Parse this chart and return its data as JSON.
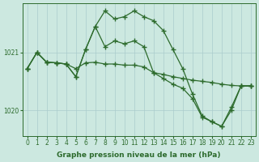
{
  "bg_color": "#cce8e0",
  "grid_color": "#aacccc",
  "line_color": "#2d6b2d",
  "xlabel": "Graphe pression niveau de la mer (hPa)",
  "yticks": [
    1020,
    1021
  ],
  "xticks": [
    0,
    1,
    2,
    3,
    4,
    5,
    6,
    7,
    8,
    9,
    10,
    11,
    12,
    13,
    14,
    15,
    16,
    17,
    18,
    19,
    20,
    21,
    22,
    23
  ],
  "ylim": [
    1019.55,
    1021.85
  ],
  "xlim": [
    -0.5,
    23.5
  ],
  "line1_x": [
    0,
    1,
    2,
    3,
    4,
    5,
    6,
    7,
    8,
    9,
    10,
    11,
    12,
    13,
    14,
    15,
    16,
    17,
    18,
    19,
    20,
    21,
    22,
    23
  ],
  "line1_y": [
    1020.72,
    1021.0,
    1020.83,
    1020.82,
    1020.8,
    1020.72,
    1020.82,
    1020.83,
    1020.8,
    1020.8,
    1020.78,
    1020.78,
    1020.75,
    1020.65,
    1020.62,
    1020.58,
    1020.55,
    1020.52,
    1020.5,
    1020.48,
    1020.45,
    1020.43,
    1020.42,
    1020.42
  ],
  "line2_x": [
    0,
    1,
    2,
    3,
    4,
    5,
    6,
    7,
    8,
    9,
    10,
    11,
    12,
    13,
    14,
    15,
    16,
    17,
    18,
    19,
    20,
    21,
    22,
    23
  ],
  "line2_y": [
    1020.72,
    1021.0,
    1020.83,
    1020.82,
    1020.8,
    1020.58,
    1021.05,
    1021.45,
    1021.1,
    1021.2,
    1021.15,
    1021.2,
    1021.1,
    1020.65,
    1020.55,
    1020.45,
    1020.38,
    1020.2,
    1019.88,
    1019.8,
    1019.72,
    1020.0,
    1020.42,
    1020.42
  ],
  "line3_x": [
    0,
    1,
    2,
    3,
    4,
    5,
    6,
    7,
    8,
    9,
    10,
    11,
    12,
    13,
    14,
    15,
    16,
    17,
    18,
    19,
    20,
    21,
    22,
    23
  ],
  "line3_y": [
    1020.72,
    1021.0,
    1020.83,
    1020.82,
    1020.8,
    1020.58,
    1021.05,
    1021.45,
    1021.72,
    1021.58,
    1021.62,
    1021.72,
    1021.62,
    1021.55,
    1021.38,
    1021.05,
    1020.72,
    1020.28,
    1019.9,
    1019.8,
    1019.72,
    1020.05,
    1020.42,
    1020.42
  ],
  "marker": "+",
  "markersize": 4,
  "linewidth": 0.9,
  "tick_fontsize": 5.5,
  "xlabel_fontsize": 6.5
}
